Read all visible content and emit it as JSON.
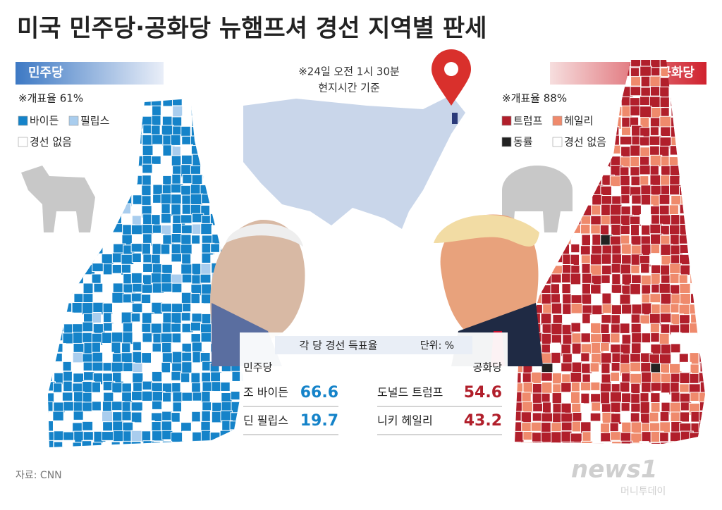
{
  "header": {
    "title": "미국 민주당·공화당 뉴햄프셔 경선 지역별 판세"
  },
  "note": [
    "※24일 오전 1시 30분",
    "현지시간 기준"
  ],
  "democrat": {
    "label": "민주당",
    "count": "※개표율 61%",
    "legend": [
      {
        "name": "바이든",
        "color": "#1583c9"
      },
      {
        "name": "필립스",
        "color": "#a9cdee"
      },
      {
        "name": "경선 없음",
        "color": "#ffffff"
      }
    ]
  },
  "republican": {
    "label": "공화당",
    "count": "※개표율 88%",
    "legend": [
      {
        "name": "트럼프",
        "color": "#b11f2b"
      },
      {
        "name": "헤일리",
        "color": "#ef8a6c"
      },
      {
        "name": "동률",
        "color": "#222222"
      },
      {
        "name": "경선 없음",
        "color": "#ffffff"
      }
    ]
  },
  "results": {
    "title": "각 당 경선 득표율",
    "unit": "단위: %",
    "democrat": {
      "party": "민주당",
      "rows": [
        [
          "조 바이든",
          66.6
        ],
        [
          "딘 필립스",
          19.7
        ]
      ]
    },
    "republican": {
      "party": "공화당",
      "rows": [
        [
          "도널드 트럼프",
          54.6
        ],
        [
          "니키 헤일리",
          43.2
        ]
      ]
    }
  },
  "footer": {
    "source": "자료: CNN",
    "logo": "news1",
    "brand": "머니투데이"
  }
}
